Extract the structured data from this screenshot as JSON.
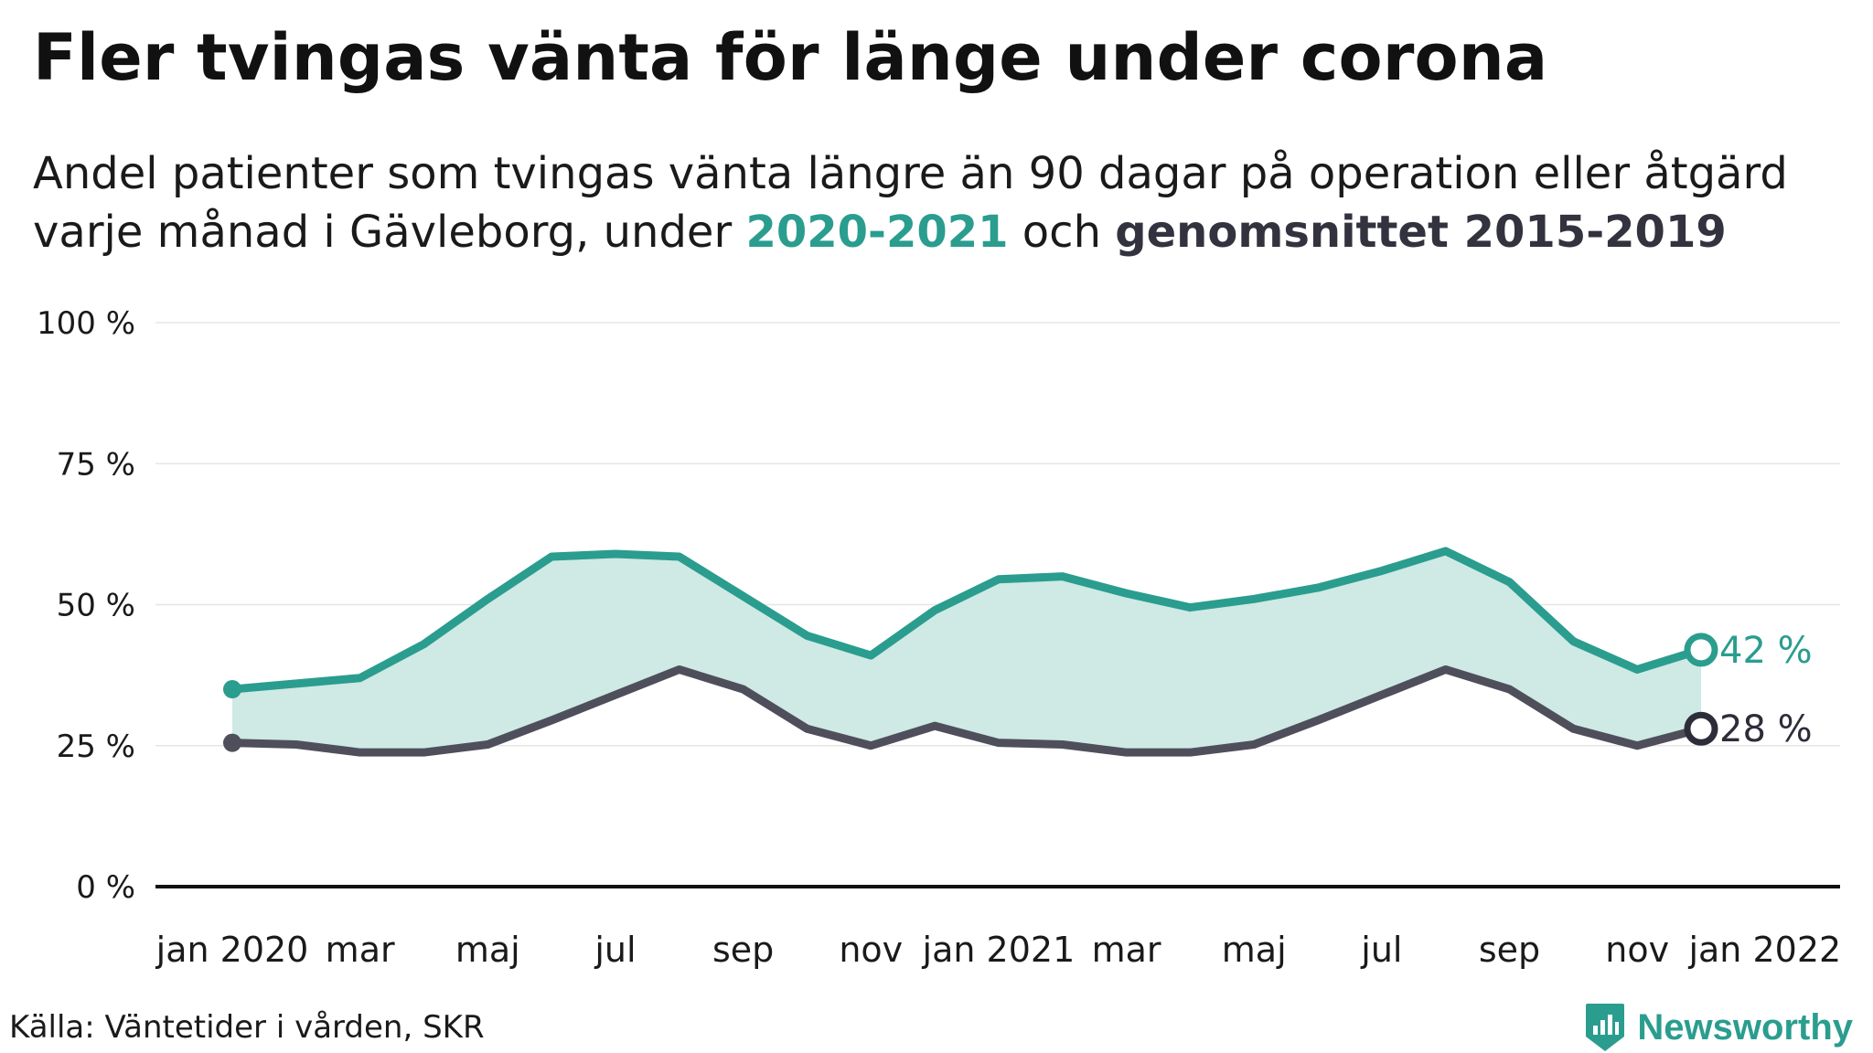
{
  "title": "Fler tvingas vänta för länge under corona",
  "subtitle": {
    "line1": "Andel patienter som tvingas vänta längre än 90 dagar på operation eller åtgärd",
    "line2_pre": "varje månad i Gävleborg, under ",
    "line2_hl1": "2020-2021",
    "line2_mid": " och ",
    "line2_hl2": "genomsnittet 2015-2019"
  },
  "source": "Källa: Väntetider i vården, SKR",
  "brand": {
    "name": "Newsworthy",
    "icon": "bar-chart-badge-icon"
  },
  "colors": {
    "series2020": "#2a9d8f",
    "average": "#4f4f5c",
    "fill": "#cfe9e5",
    "axis": "#111111",
    "grid": "#e6e6e6"
  },
  "chart_data": {
    "type": "line",
    "title": "Fler tvingas vänta för länge under corona",
    "ylim": [
      0,
      100
    ],
    "yticks": [
      {
        "value": 0,
        "label": "0 %"
      },
      {
        "value": 25,
        "label": "25 %"
      },
      {
        "value": 50,
        "label": "50 %"
      },
      {
        "value": 75,
        "label": "75 %"
      },
      {
        "value": 100,
        "label": "100 %"
      }
    ],
    "xticks": [
      {
        "index": 0,
        "label": "jan 2020"
      },
      {
        "index": 2,
        "label": "mar"
      },
      {
        "index": 4,
        "label": "maj"
      },
      {
        "index": 6,
        "label": "jul"
      },
      {
        "index": 8,
        "label": "sep"
      },
      {
        "index": 10,
        "label": "nov"
      },
      {
        "index": 12,
        "label": "jan 2021"
      },
      {
        "index": 14,
        "label": "mar"
      },
      {
        "index": 16,
        "label": "maj"
      },
      {
        "index": 18,
        "label": "jul"
      },
      {
        "index": 20,
        "label": "sep"
      },
      {
        "index": 22,
        "label": "nov"
      },
      {
        "index": 24,
        "label": "jan 2022"
      }
    ],
    "x": [
      "2020-01",
      "2020-02",
      "2020-03",
      "2020-04",
      "2020-05",
      "2020-06",
      "2020-07",
      "2020-08",
      "2020-09",
      "2020-10",
      "2020-11",
      "2020-12",
      "2021-01",
      "2021-02",
      "2021-03",
      "2021-04",
      "2021-05",
      "2021-06",
      "2021-07",
      "2021-08",
      "2021-09",
      "2021-10",
      "2021-11",
      "2021-12"
    ],
    "series": [
      {
        "name": "2020-2021",
        "color": "#2a9d8f",
        "values": [
          35,
          36,
          37,
          43,
          51,
          58.5,
          59,
          58.5,
          51.5,
          44.5,
          41,
          49,
          54.5,
          55,
          52,
          49.5,
          51,
          53,
          56,
          59.5,
          54,
          43.5,
          38.5,
          42
        ],
        "end_label": "42 %"
      },
      {
        "name": "genomsnittet 2015-2019",
        "color": "#4f4f5c",
        "values": [
          25.5,
          25.2,
          23.8,
          23.8,
          25.2,
          29.5,
          34,
          38.5,
          35,
          28,
          25,
          28.5,
          25.5,
          25.2,
          23.8,
          23.8,
          25.2,
          29.5,
          34,
          38.5,
          35,
          28,
          25,
          28
        ],
        "end_label": "28 %"
      }
    ],
    "fill_between": true,
    "grid": true
  }
}
